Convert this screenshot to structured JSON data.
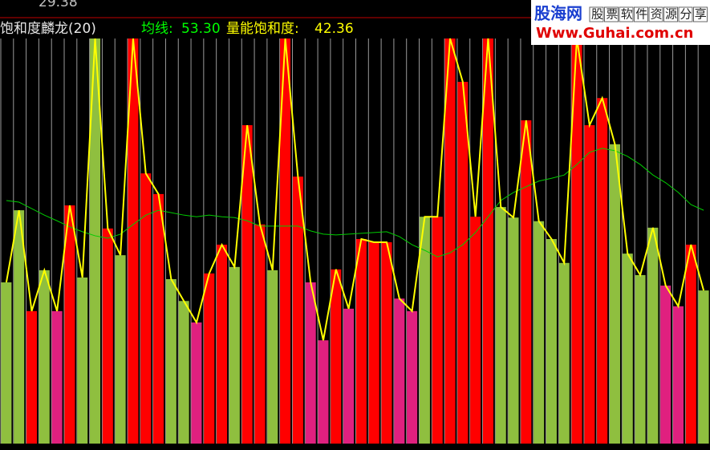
{
  "chart_data": {
    "type": "bar",
    "title": "饱和度麟龙(20)",
    "top_price": "29.38",
    "legend": [
      {
        "label": "均线:",
        "value": "53.30",
        "color": "#00ff00"
      },
      {
        "label": "量能饱和度:",
        "value": "42.36",
        "color": "#ffff00"
      }
    ],
    "ylim": [
      0,
      100
    ],
    "series": [
      {
        "color": "#ffff00",
        "bar_colors": [
          "#8fbf3f",
          "#8fbf3f",
          "#ff0000",
          "#8fbf3f",
          "#e0207f",
          "#ff0000",
          "#8fbf3f",
          "#8fbf3f",
          "#ff0000",
          "#8fbf3f",
          "#ff0000",
          "#ff0000",
          "#ff0000",
          "#8fbf3f",
          "#8fbf3f",
          "#e0207f",
          "#ff0000",
          "#ff0000",
          "#8fbf3f",
          "#ff0000",
          "#ff0000",
          "#8fbf3f",
          "#ff0000",
          "#ff0000",
          "#e0207f",
          "#e0207f",
          "#ff0000",
          "#e0207f",
          "#ff0000",
          "#ff0000",
          "#ff0000",
          "#e0207f",
          "#e0207f",
          "#8fbf3f",
          "#ff0000",
          "#ff0000",
          "#ff0000",
          "#ff0000",
          "#ff0000",
          "#8fbf3f",
          "#8fbf3f",
          "#ff0000",
          "#8fbf3f",
          "#8fbf3f",
          "#8fbf3f",
          "#ff0000",
          "#ff0000",
          "#ff0000",
          "#8fbf3f",
          "#8fbf3f",
          "#8fbf3f",
          "#8fbf3f",
          "#e0207f",
          "#e0207f",
          "#ff0000",
          "#8fbf3f"
        ],
        "values": [
          39.8,
          57.6,
          32.7,
          42.8,
          32.7,
          58.8,
          41.0,
          100,
          53.1,
          46.5,
          100,
          66.7,
          61.6,
          40.6,
          35.2,
          29.9,
          42.0,
          49.1,
          43.6,
          78.6,
          54.1,
          42.8,
          100,
          65.9,
          39.8,
          25.5,
          43.0,
          33.3,
          50.5,
          49.7,
          49.7,
          35.8,
          32.7,
          56.0,
          56.0,
          100,
          89.3,
          56.0,
          100,
          58.4,
          55.8,
          79.8,
          54.9,
          50.5,
          44.6,
          100,
          78.6,
          85.3,
          73.9,
          46.9,
          41.6,
          53.3,
          39.0,
          33.9,
          49.1,
          37.8
        ]
      },
      {
        "color": "#00cc00",
        "values": [
          60.0,
          59.6,
          58.0,
          56.4,
          55.0,
          53.5,
          52.3,
          51.3,
          50.7,
          51.7,
          54.1,
          56.4,
          57.6,
          57.0,
          56.4,
          56.0,
          56.4,
          56.0,
          55.8,
          55.0,
          53.7,
          53.7,
          53.7,
          53.7,
          52.5,
          51.7,
          51.5,
          51.7,
          51.9,
          52.1,
          52.3,
          51.1,
          49.1,
          47.7,
          46.1,
          47.1,
          49.1,
          52.1,
          56.0,
          60.0,
          62.0,
          63.4,
          64.8,
          65.5,
          66.3,
          68.9,
          71.9,
          72.9,
          72.3,
          70.9,
          68.9,
          66.3,
          64.4,
          62.0,
          59.0,
          57.6
        ]
      }
    ]
  },
  "watermark": {
    "brand": "股海网",
    "slogan": "股票软件资源分享",
    "url": "Www.Guhai.com.cn"
  }
}
